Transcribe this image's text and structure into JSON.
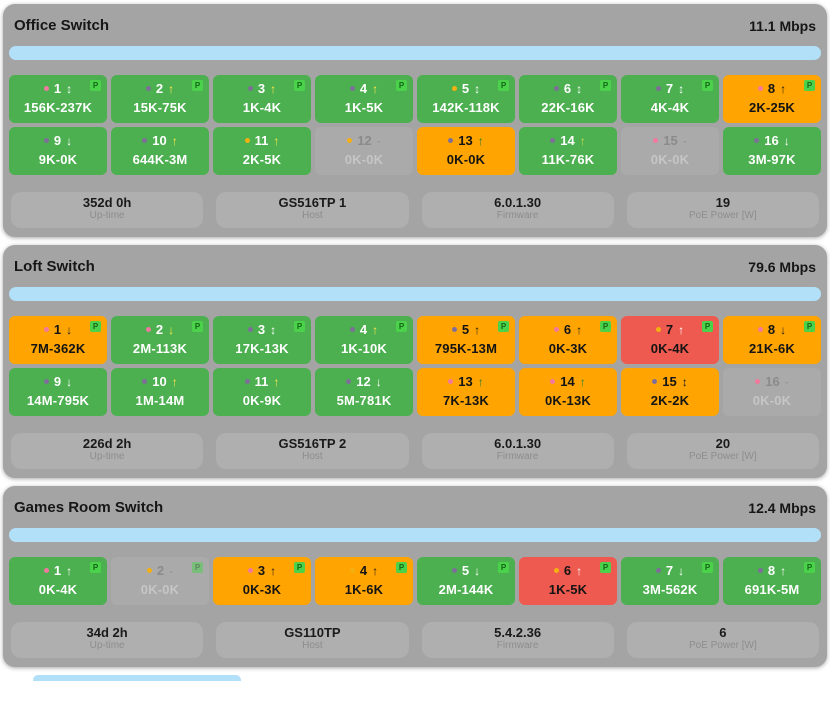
{
  "labels": {
    "poe_badge": "P"
  },
  "colors": {
    "page_bg": "#ffffff",
    "card_bg": "#a4a4a4",
    "chip_bg": "#afafaf",
    "bar_fill": "#b2e0f8",
    "port_green": "#4caf50",
    "port_orange": "#ffa400",
    "port_red": "#ee5a4f",
    "port_off": "#aaaaaa",
    "poe_badge_bg": "#4ad34a",
    "poe_badge_text": "#156615",
    "dots": {
      "pink": "#f1799e",
      "purple": "#7d6f98",
      "amber": "#f3b011"
    },
    "arrows": {
      "white": "#ffffff",
      "yellow": "#ffe74f",
      "black": "#1c1c1c",
      "green": "#2f7d33",
      "lime": "#c8dc4b",
      "gray": "#9a9a9a"
    }
  },
  "switches": [
    {
      "id": "office",
      "title": "Office Switch",
      "rate": "11.1 Mbps",
      "ports": [
        {
          "num": "1",
          "dot": "pink",
          "arrow": "↕",
          "arrow_color": "white",
          "value": "156K-237K",
          "state": "green",
          "poe": true
        },
        {
          "num": "2",
          "dot": "purple",
          "arrow": "↑",
          "arrow_color": "yellow",
          "value": "15K-75K",
          "state": "green",
          "poe": true
        },
        {
          "num": "3",
          "dot": "purple",
          "arrow": "↑",
          "arrow_color": "yellow",
          "value": "1K-4K",
          "state": "green",
          "poe": true
        },
        {
          "num": "4",
          "dot": "purple",
          "arrow": "↑",
          "arrow_color": "yellow",
          "value": "1K-5K",
          "state": "green",
          "poe": true
        },
        {
          "num": "5",
          "dot": "amber",
          "arrow": "↕",
          "arrow_color": "white",
          "value": "142K-118K",
          "state": "green",
          "poe": true
        },
        {
          "num": "6",
          "dot": "purple",
          "arrow": "↕",
          "arrow_color": "white",
          "value": "22K-16K",
          "state": "green",
          "poe": true
        },
        {
          "num": "7",
          "dot": "purple",
          "arrow": "↕",
          "arrow_color": "white",
          "value": "4K-4K",
          "state": "green",
          "poe": true
        },
        {
          "num": "8",
          "dot": "pink",
          "arrow": "↑",
          "arrow_color": "black",
          "value": "2K-25K",
          "state": "orange",
          "poe": true
        },
        {
          "num": "9",
          "dot": "purple",
          "arrow": "↓",
          "arrow_color": "white",
          "value": "9K-0K",
          "state": "green",
          "poe": false
        },
        {
          "num": "10",
          "dot": "purple",
          "arrow": "↑",
          "arrow_color": "yellow",
          "value": "644K-3M",
          "state": "green",
          "poe": false
        },
        {
          "num": "11",
          "dot": "amber",
          "arrow": "↑",
          "arrow_color": "yellow",
          "value": "2K-5K",
          "state": "green",
          "poe": false
        },
        {
          "num": "12",
          "dot": "amber",
          "arrow": "-",
          "arrow_color": "gray",
          "value": "0K-0K",
          "state": "off",
          "poe": false
        },
        {
          "num": "13",
          "dot": "purple",
          "arrow": "↑",
          "arrow_color": "green",
          "value": "0K-0K",
          "state": "orange",
          "poe": false
        },
        {
          "num": "14",
          "dot": "purple",
          "arrow": "↑",
          "arrow_color": "lime",
          "value": "11K-76K",
          "state": "green",
          "poe": false
        },
        {
          "num": "15",
          "dot": "pink",
          "arrow": "-",
          "arrow_color": "gray",
          "value": "0K-0K",
          "state": "off",
          "poe": false
        },
        {
          "num": "16",
          "dot": "purple",
          "arrow": "↓",
          "arrow_color": "white",
          "value": "3M-97K",
          "state": "green",
          "poe": false
        }
      ],
      "stats": [
        {
          "value": "352d 0h",
          "label": "Up-time"
        },
        {
          "value": "GS516TP 1",
          "label": "Host"
        },
        {
          "value": "6.0.1.30",
          "label": "Firmware"
        },
        {
          "value": "19",
          "label": "PoE Power [W]"
        }
      ]
    },
    {
      "id": "loft",
      "title": "Loft Switch",
      "rate": "79.6 Mbps",
      "ports": [
        {
          "num": "1",
          "dot": "pink",
          "arrow": "↓",
          "arrow_color": "black",
          "value": "7M-362K",
          "state": "orange",
          "poe": true
        },
        {
          "num": "2",
          "dot": "pink",
          "arrow": "↓",
          "arrow_color": "yellow",
          "value": "2M-113K",
          "state": "green",
          "poe": true
        },
        {
          "num": "3",
          "dot": "purple",
          "arrow": "↕",
          "arrow_color": "white",
          "value": "17K-13K",
          "state": "green",
          "poe": true
        },
        {
          "num": "4",
          "dot": "purple",
          "arrow": "↑",
          "arrow_color": "yellow",
          "value": "1K-10K",
          "state": "green",
          "poe": true
        },
        {
          "num": "5",
          "dot": "purple",
          "arrow": "↑",
          "arrow_color": "black",
          "value": "795K-13M",
          "state": "orange",
          "poe": true
        },
        {
          "num": "6",
          "dot": "pink",
          "arrow": "↑",
          "arrow_color": "black",
          "value": "0K-3K",
          "state": "orange",
          "poe": true
        },
        {
          "num": "7",
          "dot": "amber",
          "arrow": "↑",
          "arrow_color": "white",
          "value": "0K-4K",
          "state": "red",
          "poe": true
        },
        {
          "num": "8",
          "dot": "pink",
          "arrow": "↓",
          "arrow_color": "black",
          "value": "21K-6K",
          "state": "orange",
          "poe": true
        },
        {
          "num": "9",
          "dot": "purple",
          "arrow": "↓",
          "arrow_color": "white",
          "value": "14M-795K",
          "state": "green",
          "poe": false
        },
        {
          "num": "10",
          "dot": "purple",
          "arrow": "↑",
          "arrow_color": "yellow",
          "value": "1M-14M",
          "state": "green",
          "poe": false
        },
        {
          "num": "11",
          "dot": "purple",
          "arrow": "↑",
          "arrow_color": "yellow",
          "value": "0K-9K",
          "state": "green",
          "poe": false
        },
        {
          "num": "12",
          "dot": "purple",
          "arrow": "↓",
          "arrow_color": "white",
          "value": "5M-781K",
          "state": "green",
          "poe": false
        },
        {
          "num": "13",
          "dot": "pink",
          "arrow": "↑",
          "arrow_color": "green",
          "value": "7K-13K",
          "state": "orange",
          "poe": false
        },
        {
          "num": "14",
          "dot": "pink",
          "arrow": "↑",
          "arrow_color": "green",
          "value": "0K-13K",
          "state": "orange",
          "poe": false
        },
        {
          "num": "15",
          "dot": "purple",
          "arrow": "↕",
          "arrow_color": "black",
          "value": "2K-2K",
          "state": "orange",
          "poe": false
        },
        {
          "num": "16",
          "dot": "pink",
          "arrow": "-",
          "arrow_color": "gray",
          "value": "0K-0K",
          "state": "off",
          "poe": false
        }
      ],
      "stats": [
        {
          "value": "226d 2h",
          "label": "Up-time"
        },
        {
          "value": "GS516TP 2",
          "label": "Host"
        },
        {
          "value": "6.0.1.30",
          "label": "Firmware"
        },
        {
          "value": "20",
          "label": "PoE Power [W]"
        }
      ]
    },
    {
      "id": "games-room",
      "title": "Games Room Switch",
      "rate": "12.4 Mbps",
      "ports": [
        {
          "num": "1",
          "dot": "pink",
          "arrow": "↑",
          "arrow_color": "white",
          "value": "0K-4K",
          "state": "green",
          "poe": true
        },
        {
          "num": "2",
          "dot": "amber",
          "arrow": "-",
          "arrow_color": "gray",
          "value": "0K-0K",
          "state": "off",
          "poe": true
        },
        {
          "num": "3",
          "dot": "pink",
          "arrow": "↑",
          "arrow_color": "black",
          "value": "0K-3K",
          "state": "orange",
          "poe": true
        },
        {
          "num": "4",
          "dot": "amber",
          "arrow": "↑",
          "arrow_color": "black",
          "value": "1K-6K",
          "state": "orange",
          "poe": true
        },
        {
          "num": "5",
          "dot": "purple",
          "arrow": "↓",
          "arrow_color": "white",
          "value": "2M-144K",
          "state": "green",
          "poe": true
        },
        {
          "num": "6",
          "dot": "amber",
          "arrow": "↑",
          "arrow_color": "white",
          "value": "1K-5K",
          "state": "red",
          "poe": true
        },
        {
          "num": "7",
          "dot": "purple",
          "arrow": "↓",
          "arrow_color": "white",
          "value": "3M-562K",
          "state": "green",
          "poe": true
        },
        {
          "num": "8",
          "dot": "purple",
          "arrow": "↑",
          "arrow_color": "white",
          "value": "691K-5M",
          "state": "green",
          "poe": true
        }
      ],
      "stats": [
        {
          "value": "34d 2h",
          "label": "Up-time"
        },
        {
          "value": "GS110TP",
          "label": "Host"
        },
        {
          "value": "5.4.2.36",
          "label": "Firmware"
        },
        {
          "value": "6",
          "label": "PoE Power [W]"
        }
      ]
    }
  ]
}
